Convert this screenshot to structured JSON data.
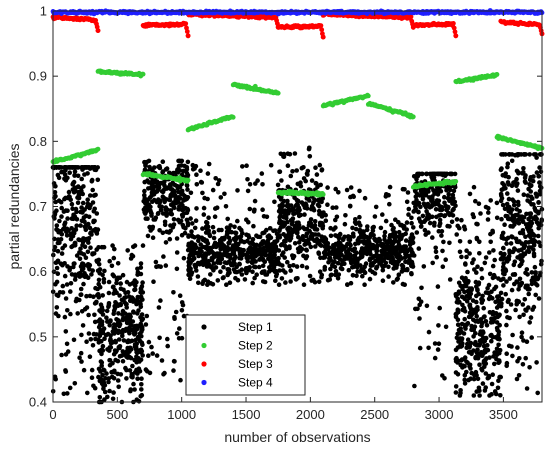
{
  "chart_data": {
    "type": "scatter",
    "title": "",
    "xlabel": "number of observations",
    "ylabel": "partial redundancies",
    "xlim": [
      0,
      3800
    ],
    "ylim": [
      0.4,
      1.0
    ],
    "xticks": [
      0,
      500,
      1000,
      1500,
      2000,
      2500,
      3000,
      3500
    ],
    "yticks": [
      0.4,
      0.5,
      0.6,
      0.7,
      0.8,
      0.9,
      1.0
    ],
    "ytick_labels": [
      "0.4",
      "0.5",
      "0.6",
      "0.7",
      "0.8",
      "0.9",
      "1"
    ],
    "grid": false,
    "legend_position": "bottom-center",
    "series": [
      {
        "name": "Step 1",
        "color": "#000000",
        "segments": [
          {
            "x": [
              0,
              350
            ],
            "min": 0.41,
            "max": 0.76,
            "center": 0.68,
            "spread": 0.08,
            "n": 380
          },
          {
            "x": [
              350,
              700
            ],
            "min": 0.4,
            "max": 0.64,
            "center": 0.51,
            "spread": 0.05,
            "n": 380
          },
          {
            "x": [
              700,
              1050
            ],
            "min": 0.43,
            "max": 0.77,
            "center": 0.72,
            "spread": 0.03,
            "n": 300
          },
          {
            "x": [
              1050,
              1750
            ],
            "min": 0.58,
            "max": 0.77,
            "center": 0.63,
            "spread": 0.02,
            "n": 500
          },
          {
            "x": [
              1750,
              2100
            ],
            "min": 0.58,
            "max": 0.79,
            "center": 0.68,
            "spread": 0.04,
            "n": 300
          },
          {
            "x": [
              2100,
              2800
            ],
            "min": 0.58,
            "max": 0.73,
            "center": 0.63,
            "spread": 0.02,
            "n": 500
          },
          {
            "x": [
              2800,
              3130
            ],
            "min": 0.42,
            "max": 0.75,
            "center": 0.72,
            "spread": 0.03,
            "n": 260
          },
          {
            "x": [
              3130,
              3480
            ],
            "min": 0.41,
            "max": 0.73,
            "center": 0.51,
            "spread": 0.05,
            "n": 360
          },
          {
            "x": [
              3480,
              3800
            ],
            "min": 0.41,
            "max": 0.78,
            "center": 0.66,
            "spread": 0.08,
            "n": 360
          }
        ]
      },
      {
        "name": "Step 2",
        "color": "#33cc33",
        "segments": [
          {
            "x": [
              0,
              350
            ],
            "y": [
              0.768,
              0.787
            ]
          },
          {
            "x": [
              350,
              700
            ],
            "y": [
              0.907,
              0.902
            ]
          },
          {
            "x": [
              700,
              1050
            ],
            "y": [
              0.75,
              0.74
            ]
          },
          {
            "x": [
              1050,
              1400
            ],
            "y": [
              0.818,
              0.838
            ]
          },
          {
            "x": [
              1400,
              1750
            ],
            "y": [
              0.887,
              0.874
            ]
          },
          {
            "x": [
              1750,
              2100
            ],
            "y": [
              0.722,
              0.719
            ]
          },
          {
            "x": [
              2100,
              2450
            ],
            "y": [
              0.855,
              0.87
            ]
          },
          {
            "x": [
              2450,
              2800
            ],
            "y": [
              0.858,
              0.838
            ]
          },
          {
            "x": [
              2800,
              3130
            ],
            "y": [
              0.731,
              0.738
            ]
          },
          {
            "x": [
              3130,
              3450
            ],
            "y": [
              0.891,
              0.902
            ]
          },
          {
            "x": [
              3450,
              3800
            ],
            "y": [
              0.807,
              0.789
            ]
          }
        ]
      },
      {
        "name": "Step 3",
        "color": "#ff0000",
        "segments": [
          {
            "x": [
              0,
              350
            ],
            "y": [
              0.99,
              0.986
            ],
            "end_drop": 0.97
          },
          {
            "x": [
              700,
              1050
            ],
            "y": [
              0.978,
              0.98
            ],
            "end_drop": 0.962
          },
          {
            "x": [
              1050,
              1750
            ],
            "y": [
              0.995,
              0.99
            ],
            "end_drop": 0.975
          },
          {
            "x": [
              1750,
              2100
            ],
            "y": [
              0.975,
              0.977
            ],
            "end_drop": 0.96
          },
          {
            "x": [
              2100,
              2800
            ],
            "y": [
              0.995,
              0.99
            ],
            "end_drop": 0.975
          },
          {
            "x": [
              2800,
              3130
            ],
            "y": [
              0.978,
              0.98
            ],
            "end_drop": 0.962
          },
          {
            "x": [
              3480,
              3800
            ],
            "y": [
              0.983,
              0.979
            ],
            "end_drop": 0.965
          }
        ]
      },
      {
        "name": "Step 4",
        "color": "#1f1fff",
        "segments": [
          {
            "x": [
              0,
              3800
            ],
            "y": [
              0.998,
              0.998
            ]
          }
        ]
      }
    ]
  }
}
